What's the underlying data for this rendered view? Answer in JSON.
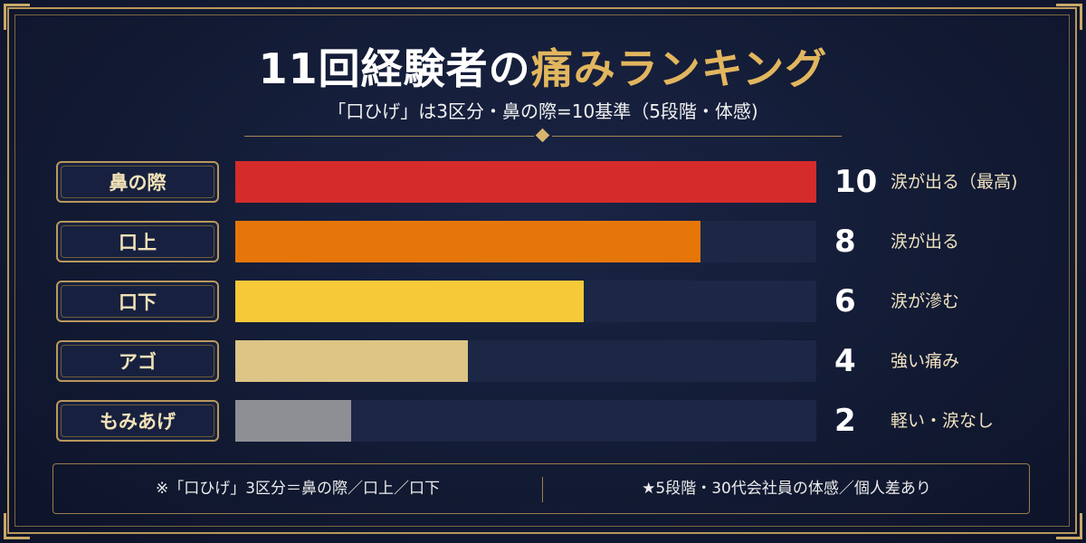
{
  "title": {
    "prefix": "11回経験者の",
    "highlight": "痛みランキング"
  },
  "subtitle": "「口ひげ」は3区分・鼻の際=10基準（5段階・体感)",
  "colors": {
    "background": "#121a33",
    "gold": "#b9975b",
    "track": "#1c2745"
  },
  "chart_data": {
    "type": "bar",
    "orientation": "horizontal",
    "categories": [
      "鼻の際",
      "口上",
      "口下",
      "アゴ",
      "もみあげ"
    ],
    "values": [
      10,
      8,
      6,
      4,
      2
    ],
    "value_labels": [
      "10",
      "8",
      "6",
      "4",
      "2"
    ],
    "annotations": [
      "涙が出る（最高)",
      "涙が出る",
      "涙が滲む",
      "強い痛み",
      "軽い・涙なし"
    ],
    "bar_colors": [
      "#d62b2b",
      "#e6760a",
      "#f6c938",
      "#dcc585",
      "#8e8f95"
    ],
    "xlim": [
      0,
      10
    ],
    "grid": false
  },
  "footer": {
    "left": "※「口ひげ」3区分＝鼻の際／口上／口下",
    "right": "★5段階・30代会社員の体感／個人差あり"
  }
}
